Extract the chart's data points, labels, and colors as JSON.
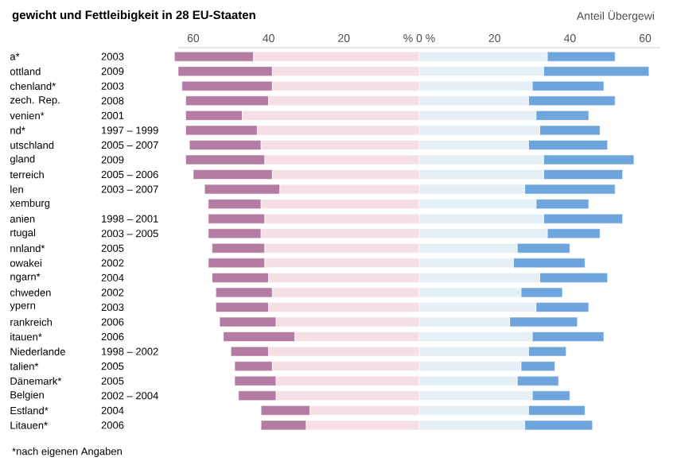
{
  "chart_data": {
    "type": "bar",
    "orientation": "horizontal",
    "stacked": true,
    "title": "gewicht und Fettleibigkeit in 28 EU-Staaten",
    "subtitle": "Anteil Übergewi",
    "categories": [
      "2003",
      "2009",
      "2003",
      "2008",
      "2001",
      "1997 – 1999",
      "2005 – 2007",
      "2009",
      "2005 – 2006",
      "2003 – 2007",
      null,
      "1998 – 2001",
      "2003 – 2005",
      "2005",
      "2002",
      "2004",
      "2002",
      "2003",
      "2006",
      "2006",
      "1998 – 2002",
      "2005",
      "2005",
      "2002 – 2004",
      "2004",
      "2006"
    ],
    "series": [
      {
        "color": "#f6dfe4",
        "values": [
          -44,
          -39,
          -39,
          -40,
          -47,
          -43,
          -42,
          -41,
          -39,
          -37,
          -42,
          -41,
          -42,
          -41,
          -41,
          -40,
          -39,
          -40,
          -38,
          -33,
          -40,
          -39,
          -38,
          -38,
          -29,
          -30
        ]
      },
      {
        "color": "#b47ba3",
        "values": [
          -21,
          -25,
          -24,
          -22,
          -15,
          -19,
          -19,
          -21,
          -21,
          -20,
          -14,
          -15,
          -14,
          -14,
          -15,
          -15,
          -15,
          -14,
          -15,
          -19,
          -10,
          -10,
          -11,
          -10,
          -13,
          -12
        ]
      },
      {
        "color": "#e4f0f6",
        "values": [
          34,
          33,
          30,
          29,
          31,
          32,
          29,
          33,
          33,
          28,
          31,
          33,
          34,
          26,
          25,
          32,
          27,
          31,
          24,
          30,
          29,
          27,
          26,
          30,
          29,
          28
        ]
      },
      {
        "color": "#6ea5dc",
        "values": [
          18,
          28,
          19,
          23,
          14,
          16,
          21,
          24,
          21,
          24,
          14,
          21,
          14,
          14,
          19,
          18,
          11,
          14,
          18,
          19,
          10,
          9,
          11,
          10,
          15,
          18
        ]
      }
    ],
    "xlim": [
      -64,
      64
    ],
    "xticks": [
      {
        "value": -60,
        "label": "60"
      },
      {
        "value": -40,
        "label": "40"
      },
      {
        "value": -20,
        "label": "20"
      },
      {
        "value": 0,
        "label": "% 0 %"
      },
      20,
      40,
      60
    ],
    "annotations": [
      "a*",
      "ottland",
      "chenland*",
      "zech. Rep.",
      "venien*",
      "nd*",
      "utschland",
      "gland",
      "terreich",
      "len",
      "xemburg",
      "anien",
      "rtugal",
      "nnland*",
      "owakei",
      "ngarn*",
      "chweden",
      "ypern",
      "rankreich",
      "itauen*",
      "Niederlande",
      "talien*",
      "Dänemark*",
      "Belgien",
      "Estland*",
      "Litauen*",
      "*nach eigenen Angaben"
    ]
  }
}
